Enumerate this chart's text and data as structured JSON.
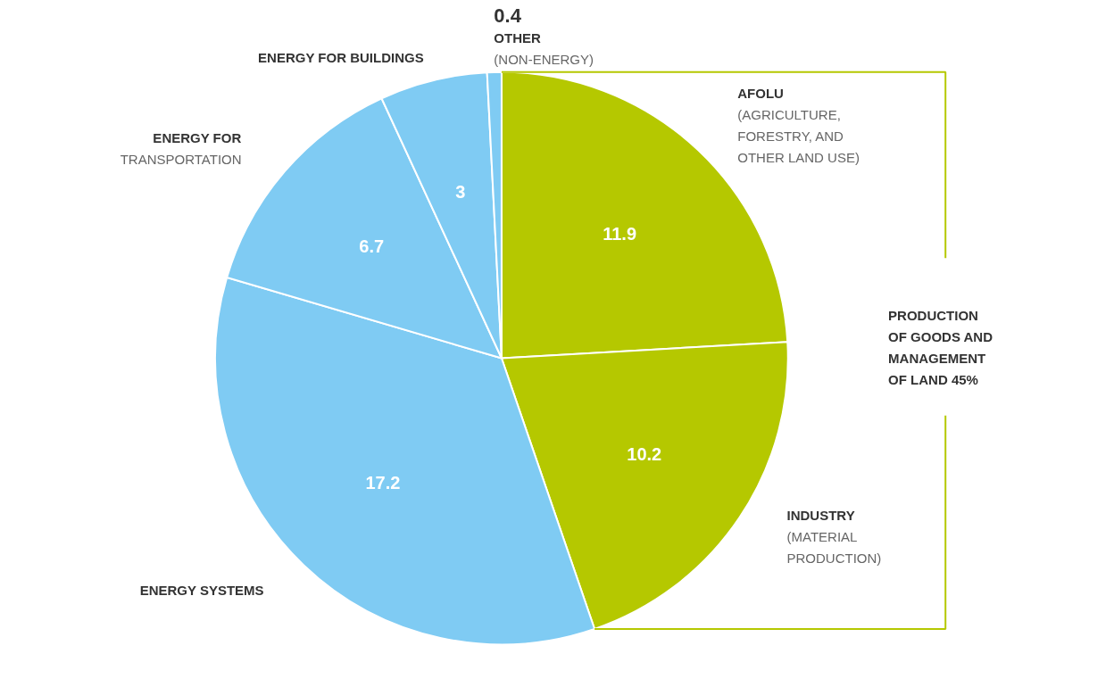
{
  "chart_data": {
    "type": "pie",
    "categories": [
      "AFOLU\n(AGRICULTURE,\nFORESTRY, AND\nOTHER LAND USE)",
      "INDUSTRY\n(MATERIAL\nPRODUCTION)",
      "ENERGY SYSTEMS",
      "ENERGY FOR\nTRANSPORTATION",
      "ENERGY FOR BUILDINGS",
      "OTHER\n(NON-ENERGY)"
    ],
    "values": [
      11.9,
      10.2,
      17.2,
      6.7,
      3,
      0.4
    ],
    "colors": [
      "#b5c800",
      "#b5c800",
      "#7fcbf3",
      "#7fcbf3",
      "#7fcbf3",
      "#7fcbf3"
    ],
    "data_labels": true,
    "annotations": [
      "PRODUCTION OF GOODS AND MANAGEMENT OF LAND 45%"
    ]
  }
}
